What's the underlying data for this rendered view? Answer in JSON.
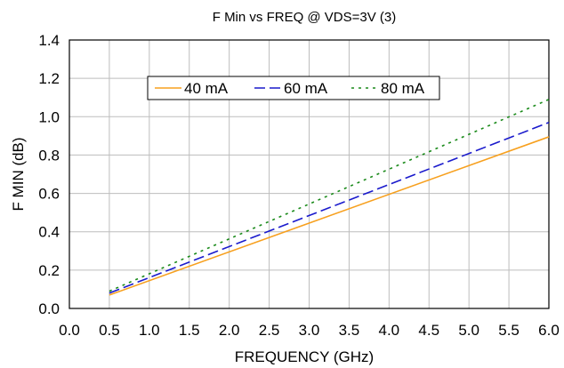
{
  "chart_data": {
    "type": "line",
    "title": "F Min vs FREQ @ VDS=3V (3)",
    "xlabel": "FREQUENCY (GHz)",
    "ylabel": "F MIN (dB)",
    "xlim": [
      0.0,
      6.0
    ],
    "ylim": [
      0.0,
      1.4
    ],
    "x_ticks": [
      "0.0",
      "0.5",
      "1.0",
      "1.5",
      "2.0",
      "2.5",
      "3.0",
      "3.5",
      "4.0",
      "4.5",
      "5.0",
      "5.5",
      "6.0"
    ],
    "y_ticks": [
      "0.0",
      "0.2",
      "0.4",
      "0.6",
      "0.8",
      "1.0",
      "1.2",
      "1.4"
    ],
    "grid": true,
    "legend_position": "top-center",
    "series": [
      {
        "name": "40 mA",
        "color": "#f7a01e",
        "dash": "solid",
        "x": [
          0.5,
          6.0
        ],
        "y": [
          0.07,
          0.895
        ]
      },
      {
        "name": "60 mA",
        "color": "#1a1acc",
        "dash": "dashed",
        "x": [
          0.5,
          6.0
        ],
        "y": [
          0.08,
          0.97
        ]
      },
      {
        "name": "80 mA",
        "color": "#1a8a1a",
        "dash": "dotted",
        "x": [
          0.5,
          6.0
        ],
        "y": [
          0.09,
          1.09
        ]
      }
    ]
  }
}
